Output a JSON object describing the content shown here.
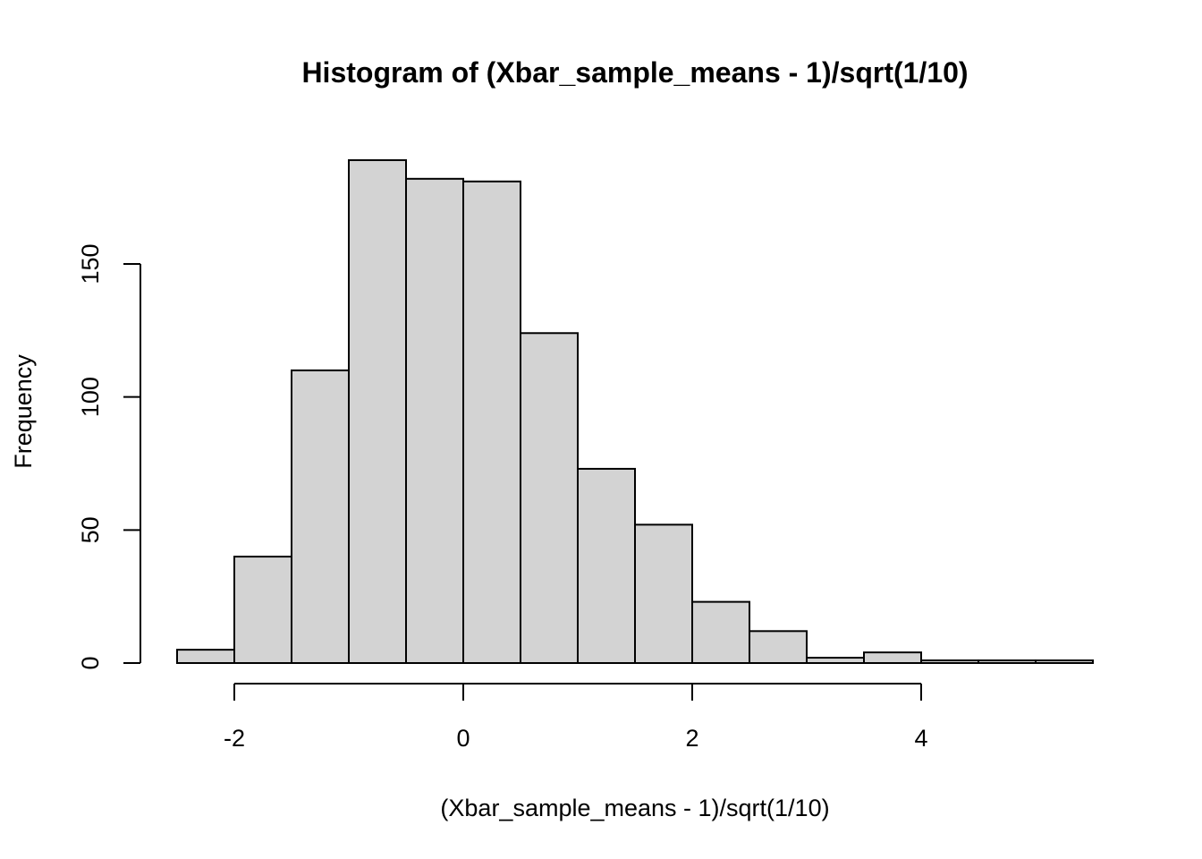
{
  "chart_data": {
    "type": "bar",
    "title": "Histogram of (Xbar_sample_means - 1)/sqrt(1/10)",
    "xlabel": "(Xbar_sample_means - 1)/sqrt(1/10)",
    "ylabel": "Frequency",
    "bin_edges": [
      -2.5,
      -2.0,
      -1.5,
      -1.0,
      -0.5,
      0.0,
      0.5,
      1.0,
      1.5,
      2.0,
      2.5,
      3.0,
      3.5,
      4.0,
      4.5,
      5.0,
      5.5
    ],
    "values": [
      5,
      40,
      110,
      189,
      182,
      181,
      124,
      73,
      52,
      23,
      12,
      2,
      4,
      1,
      1,
      1
    ],
    "bar_color": "#d3d3d3",
    "xlim": [
      -2.5,
      5.5
    ],
    "ylim": [
      0,
      189
    ],
    "x_ticks": [
      -2,
      0,
      2,
      4
    ],
    "x_tick_labels": [
      "-2",
      "0",
      "2",
      "4"
    ],
    "y_ticks": [
      0,
      50,
      100,
      150
    ],
    "y_tick_labels": [
      "0",
      "50",
      "100",
      "150"
    ],
    "grid": false,
    "legend": "none"
  }
}
